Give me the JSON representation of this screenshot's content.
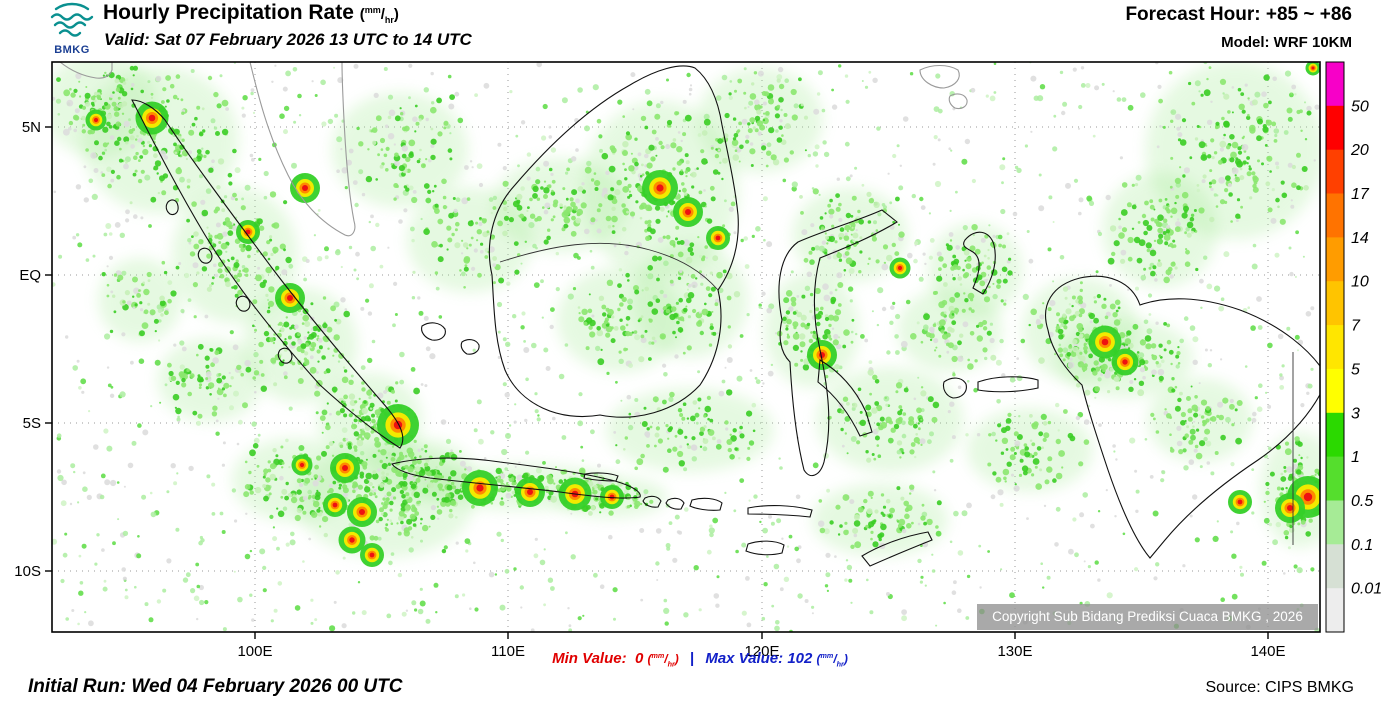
{
  "header": {
    "logo_text": "BMKG",
    "title_main": "Hourly Precipitation Rate",
    "unit_sup": "mm",
    "unit_sub": "hr",
    "valid_line": "Valid: Sat 07 February 2026 13 UTC to 14 UTC",
    "forecast_label": "Forecast Hour:",
    "forecast_value": "+85 ~ +86",
    "model_line": "Model: WRF 10KM"
  },
  "map": {
    "lat_labels": [
      "5N",
      "EQ",
      "5S",
      "10S"
    ],
    "lon_labels": [
      "100E",
      "110E",
      "120E",
      "130E",
      "140E"
    ],
    "copyright": "Copyright Sub Bidang Prediksi Cuaca BMKG , 2026"
  },
  "legend": {
    "values": [
      "50",
      "20",
      "17",
      "14",
      "10",
      "7",
      "5",
      "3",
      "1",
      "0.5",
      "0.1",
      "0.01"
    ],
    "colors": [
      "#F700C8",
      "#FF0000",
      "#FF4000",
      "#FF7300",
      "#FF9C00",
      "#FFC400",
      "#FFE600",
      "#FFFF00",
      "#2BD900",
      "#55DE2D",
      "#A6EB96",
      "#D6E0D4",
      "#EDEDED"
    ]
  },
  "footer": {
    "min_label": "Min Value:",
    "min_value": "0",
    "max_label": "Max Value:",
    "max_value": "102",
    "separator": "|",
    "initial_run": "Initial Run: Wed 04 February 2026 00 UTC",
    "source": "Source: CIPS BMKG"
  }
}
